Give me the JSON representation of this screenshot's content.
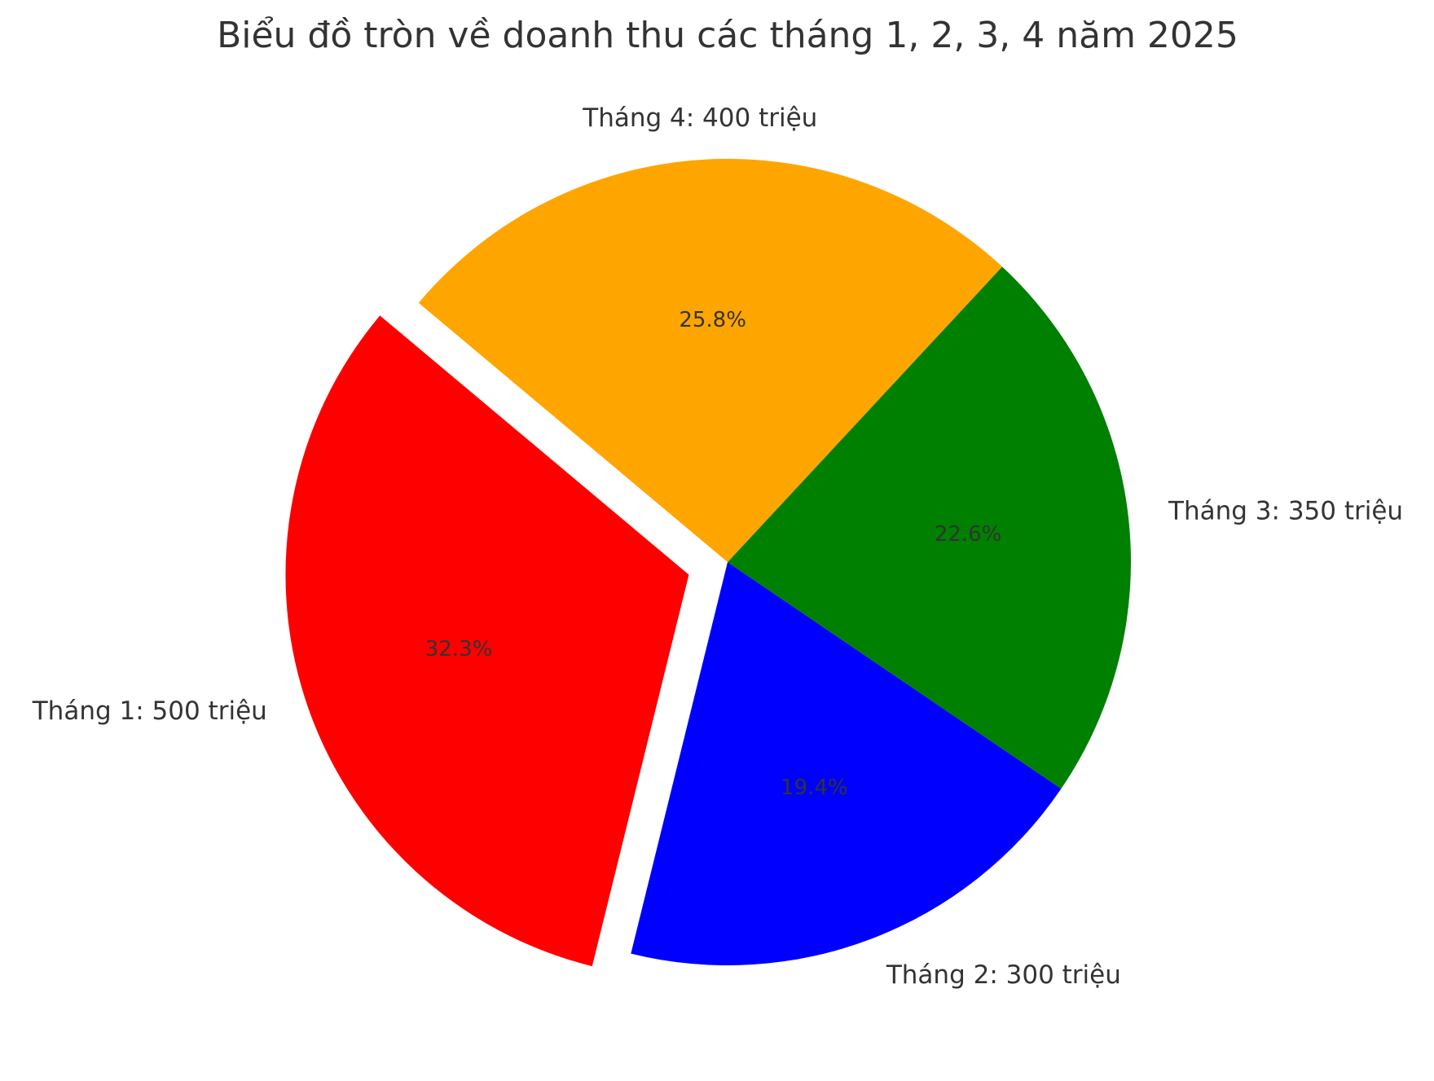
{
  "chart_data": {
    "type": "pie",
    "title": "Biểu đồ tròn về doanh thu các tháng 1, 2, 3, 4 năm 2025",
    "slices": [
      {
        "label": "Tháng 1: 500 triệu",
        "value": 500,
        "percent_label": "32.3%",
        "color": "#ff0000",
        "exploded": true
      },
      {
        "label": "Tháng 2: 300 triệu",
        "value": 300,
        "percent_label": "19.4%",
        "color": "#0000ff",
        "exploded": false
      },
      {
        "label": "Tháng 3: 350 triệu",
        "value": 350,
        "percent_label": "22.6%",
        "color": "#008000",
        "exploded": false
      },
      {
        "label": "Tháng 4: 400 triệu",
        "value": 400,
        "percent_label": "25.8%",
        "color": "#ffa500",
        "exploded": false
      }
    ],
    "start_angle_deg": 140,
    "direction": "counterclockwise",
    "legend": "none"
  }
}
